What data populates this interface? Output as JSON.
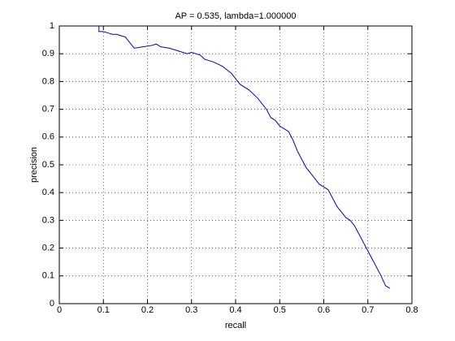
{
  "chart_data": {
    "type": "line",
    "title": "AP = 0.535, lambda=1.000000",
    "xlabel": "recall",
    "ylabel": "precision",
    "x": [
      0.09,
      0.09,
      0.1,
      0.11,
      0.12,
      0.13,
      0.14,
      0.15,
      0.16,
      0.17,
      0.19,
      0.21,
      0.22,
      0.23,
      0.25,
      0.27,
      0.29,
      0.3,
      0.32,
      0.33,
      0.35,
      0.37,
      0.39,
      0.4,
      0.41,
      0.43,
      0.45,
      0.46,
      0.47,
      0.48,
      0.49,
      0.5,
      0.51,
      0.52,
      0.53,
      0.54,
      0.55,
      0.56,
      0.57,
      0.58,
      0.59,
      0.6,
      0.61,
      0.62,
      0.63,
      0.64,
      0.65,
      0.66,
      0.67,
      0.68,
      0.69,
      0.7,
      0.71,
      0.72,
      0.73,
      0.74,
      0.75
    ],
    "values": [
      1.0,
      0.98,
      0.98,
      0.975,
      0.97,
      0.97,
      0.965,
      0.96,
      0.94,
      0.92,
      0.925,
      0.93,
      0.935,
      0.925,
      0.92,
      0.91,
      0.9,
      0.905,
      0.895,
      0.88,
      0.87,
      0.855,
      0.83,
      0.81,
      0.79,
      0.77,
      0.74,
      0.72,
      0.7,
      0.67,
      0.66,
      0.64,
      0.63,
      0.62,
      0.59,
      0.55,
      0.52,
      0.49,
      0.47,
      0.45,
      0.43,
      0.42,
      0.41,
      0.38,
      0.35,
      0.33,
      0.31,
      0.3,
      0.28,
      0.25,
      0.22,
      0.19,
      0.16,
      0.13,
      0.1,
      0.065,
      0.055
    ],
    "color": "#0000cc",
    "xlim": [
      0,
      0.8
    ],
    "xticks": [
      0,
      0.1,
      0.2,
      0.3,
      0.4,
      0.5,
      0.6,
      0.7,
      0.8
    ],
    "ylim": [
      0,
      1
    ],
    "yticks": [
      0,
      0.1,
      0.2,
      0.3,
      0.4,
      0.5,
      0.6,
      0.7,
      0.8,
      0.9,
      1
    ],
    "grid": true
  }
}
